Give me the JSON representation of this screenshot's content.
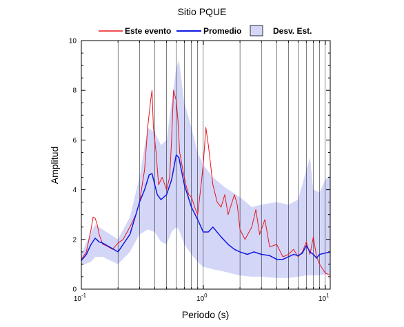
{
  "chart_data": {
    "type": "line",
    "title": "Sitio PQUE",
    "xlabel": "Periodo (s)",
    "ylabel": "Amplitud",
    "x_scale": "log",
    "xlim": [
      0.1,
      11
    ],
    "ylim": [
      0,
      10
    ],
    "grid": "vertical, log decades",
    "legend_position": "top",
    "x_tick_labels": [
      {
        "base": "10",
        "exp": "-1"
      },
      {
        "base": "10",
        "exp": "0"
      },
      {
        "base": "10",
        "exp": "1"
      }
    ],
    "y_tick_labels": [
      "0",
      "2",
      "4",
      "6",
      "8",
      "10"
    ],
    "legend": {
      "event": "Este evento",
      "mean": "Promedio",
      "std": "Desv. Est."
    },
    "colors": {
      "event": "#e8141c",
      "mean": "#1018e0",
      "std_fill": "#d4d6f8",
      "grid": "#000000"
    },
    "series": [
      {
        "name": "Este evento",
        "x": [
          0.1,
          0.11,
          0.12,
          0.125,
          0.13,
          0.135,
          0.14,
          0.15,
          0.16,
          0.18,
          0.2,
          0.22,
          0.25,
          0.28,
          0.3,
          0.33,
          0.35,
          0.37,
          0.38,
          0.39,
          0.41,
          0.43,
          0.46,
          0.5,
          0.53,
          0.55,
          0.57,
          0.6,
          0.62,
          0.64,
          0.68,
          0.72,
          0.76,
          0.8,
          0.85,
          0.9,
          0.95,
          1.0,
          1.05,
          1.1,
          1.2,
          1.3,
          1.4,
          1.5,
          1.6,
          1.8,
          1.9,
          2.0,
          2.2,
          2.5,
          2.7,
          2.9,
          3.2,
          3.5,
          4.0,
          4.5,
          5.0,
          5.5,
          6.0,
          6.5,
          7.0,
          7.5,
          8.0,
          8.5,
          9.0,
          10.0,
          11.0
        ],
        "y": [
          1.2,
          1.5,
          2.4,
          2.9,
          2.85,
          2.6,
          2.2,
          1.8,
          1.75,
          1.6,
          1.85,
          2.0,
          2.5,
          3.0,
          3.5,
          4.8,
          6.5,
          7.6,
          8.0,
          6.5,
          5.5,
          4.2,
          4.5,
          4.0,
          4.5,
          6.0,
          8.0,
          7.6,
          6.8,
          5.5,
          4.8,
          4.2,
          3.8,
          3.7,
          3.3,
          3.0,
          4.0,
          5.0,
          6.5,
          5.8,
          4.2,
          3.5,
          3.3,
          3.8,
          3.0,
          3.8,
          3.4,
          2.4,
          2.0,
          2.5,
          3.2,
          2.2,
          2.8,
          1.7,
          1.8,
          1.3,
          1.4,
          1.6,
          1.3,
          1.5,
          1.9,
          1.4,
          2.1,
          1.3,
          1.0,
          0.65,
          0.55
        ]
      },
      {
        "name": "Promedio",
        "x": [
          0.1,
          0.11,
          0.12,
          0.13,
          0.14,
          0.15,
          0.17,
          0.2,
          0.22,
          0.25,
          0.28,
          0.3,
          0.33,
          0.36,
          0.38,
          0.4,
          0.42,
          0.45,
          0.5,
          0.55,
          0.6,
          0.63,
          0.7,
          0.8,
          0.9,
          1.0,
          1.1,
          1.2,
          1.4,
          1.6,
          1.8,
          2.0,
          2.3,
          2.6,
          3.0,
          3.5,
          4.0,
          4.5,
          5.0,
          5.5,
          6.0,
          6.5,
          7.0,
          7.5,
          8.0,
          8.5,
          9.0,
          10.0,
          11.0
        ],
        "y": [
          1.15,
          1.4,
          1.8,
          2.05,
          1.9,
          1.85,
          1.7,
          1.5,
          1.8,
          2.2,
          3.0,
          3.5,
          4.0,
          4.6,
          4.65,
          4.2,
          3.8,
          3.6,
          3.8,
          4.4,
          5.4,
          5.3,
          4.2,
          3.3,
          2.8,
          2.3,
          2.3,
          2.5,
          2.1,
          1.8,
          1.6,
          1.5,
          1.4,
          1.5,
          1.4,
          1.35,
          1.2,
          1.2,
          1.3,
          1.4,
          1.35,
          1.45,
          1.75,
          1.5,
          1.4,
          1.25,
          1.4,
          1.45,
          1.5
        ]
      }
    ],
    "band": {
      "name": "Desv. Est.",
      "x": [
        0.1,
        0.12,
        0.13,
        0.15,
        0.2,
        0.25,
        0.3,
        0.35,
        0.4,
        0.45,
        0.5,
        0.55,
        0.6,
        0.63,
        0.7,
        0.8,
        0.9,
        1.0,
        1.2,
        1.5,
        2.0,
        2.5,
        3.0,
        4.0,
        5.0,
        6.0,
        7.0,
        7.5,
        8.0,
        9.0,
        10.0,
        11.0
      ],
      "upper": [
        1.4,
        2.3,
        2.6,
        2.4,
        2.0,
        2.9,
        4.5,
        6.5,
        6.3,
        5.8,
        6.0,
        7.5,
        8.9,
        9.2,
        7.5,
        6.5,
        5.5,
        5.0,
        4.5,
        4.1,
        3.7,
        3.3,
        3.4,
        3.5,
        3.4,
        3.6,
        4.8,
        5.3,
        4.0,
        3.9,
        4.4,
        4.6
      ],
      "lower": [
        0.95,
        1.1,
        1.3,
        1.3,
        1.0,
        1.5,
        2.2,
        2.4,
        2.3,
        1.9,
        1.8,
        2.3,
        2.5,
        2.4,
        1.8,
        1.4,
        1.1,
        0.9,
        0.8,
        0.7,
        0.55,
        0.5,
        0.5,
        0.45,
        0.45,
        0.5,
        0.55,
        0.55,
        0.55,
        0.55,
        0.6,
        0.6
      ]
    }
  }
}
